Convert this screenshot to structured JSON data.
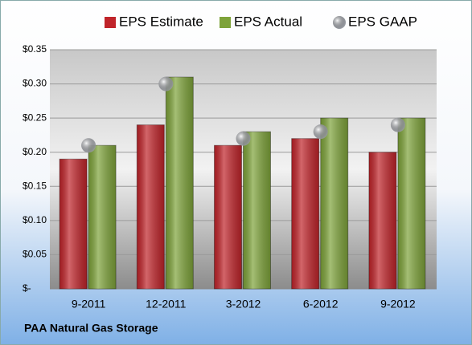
{
  "chart_data": {
    "type": "bar",
    "categories": [
      "9-2011",
      "12-2011",
      "3-2012",
      "6-2012",
      "9-2012"
    ],
    "series": [
      {
        "name": "EPS Estimate",
        "color": "#c0242a",
        "values": [
          0.19,
          0.24,
          0.21,
          0.22,
          0.2
        ]
      },
      {
        "name": "EPS Actual",
        "color": "#7ea33a",
        "values": [
          0.21,
          0.31,
          0.23,
          0.25,
          0.25
        ]
      },
      {
        "name": "EPS GAAP",
        "type": "scatter",
        "color": "#b8bcc4",
        "values": [
          0.21,
          0.3,
          0.22,
          0.23,
          0.24
        ]
      }
    ],
    "ylim": [
      0,
      0.35
    ],
    "yticks": [
      {
        "value": 0,
        "label": "$-"
      },
      {
        "value": 0.05,
        "label": "$0.05"
      },
      {
        "value": 0.1,
        "label": "$0.10"
      },
      {
        "value": 0.15,
        "label": "$0.15"
      },
      {
        "value": 0.2,
        "label": "$0.20"
      },
      {
        "value": 0.25,
        "label": "$0.25"
      },
      {
        "value": 0.3,
        "label": "$0.30"
      },
      {
        "value": 0.35,
        "label": "$0.35"
      }
    ],
    "grid": true,
    "footer": "PAA Natural Gas Storage"
  }
}
